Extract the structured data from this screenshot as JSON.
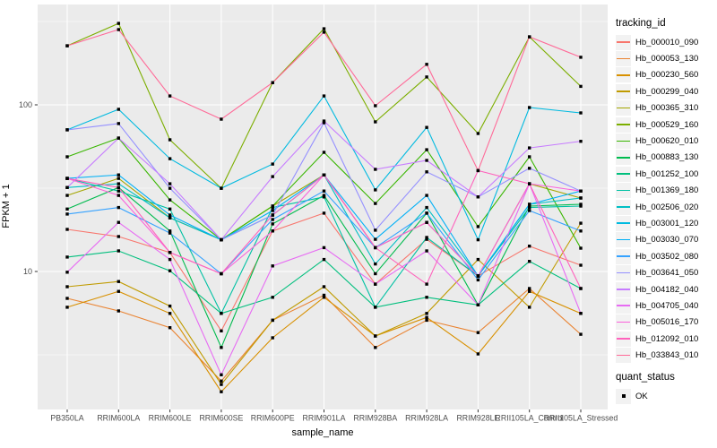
{
  "chart_data": {
    "type": "line",
    "title": "",
    "xlabel": "sample_name",
    "ylabel": "FPKM + 1",
    "y_scale": "log10",
    "ylim": [
      1.5,
      375
    ],
    "grid": "on",
    "panel_background": "#EBEBEB",
    "gridline_color": "#FFFFFF",
    "tick_label_color": "#4D4D4D",
    "point_marker": "black-square",
    "y_ticks": [
      {
        "label": "100",
        "value": 100
      },
      {
        "label": "10",
        "value": 10
      }
    ],
    "y_minor_gridlines": [
      316.2,
      31.62,
      3.162
    ],
    "x_categories": [
      "PB350LA",
      "RRIM600LA",
      "RRIM600LE",
      "RRIM600SE",
      "RRIM600PE",
      "RRIM901LA",
      "RRIM928BA",
      "RRIM928LA",
      "RRIM928LE",
      "RRII105LA_Control",
      "RRII105LA_Stressed"
    ],
    "legend": {
      "title": "tracking_id",
      "position": "right"
    },
    "quant_status_legend": {
      "title": "quant_status",
      "items": [
        {
          "label": "OK",
          "marker": "black-square"
        }
      ]
    },
    "series": [
      {
        "name": "Hb_000010_090",
        "color": "#F8766D",
        "values": [
          17.9,
          16.2,
          13.0,
          4.4,
          17.5,
          22.4,
          8.4,
          15.6,
          9.4,
          14.2,
          10.9
        ]
      },
      {
        "name": "Hb_000053_130",
        "color": "#EA8331",
        "values": [
          6.9,
          5.8,
          4.6,
          2.2,
          5.1,
          7.2,
          3.5,
          5.1,
          4.3,
          7.9,
          4.2
        ]
      },
      {
        "name": "Hb_000230_560",
        "color": "#D89000",
        "values": [
          6.1,
          7.6,
          5.6,
          1.9,
          4.0,
          7.0,
          4.1,
          5.3,
          3.2,
          7.6,
          5.6
        ]
      },
      {
        "name": "Hb_000299_040",
        "color": "#C09B00",
        "values": [
          8.1,
          8.7,
          6.2,
          2.1,
          5.1,
          8.1,
          4.1,
          5.6,
          11.8,
          6.1,
          19.5
        ]
      },
      {
        "name": "Hb_000365_310",
        "color": "#A3A500",
        "values": [
          28.6,
          36.2,
          21.0,
          15.5,
          24.7,
          38.0,
          13.9,
          19.7,
          9.4,
          33.6,
          27.6
        ]
      },
      {
        "name": "Hb_000529_160",
        "color": "#7CAE00",
        "values": [
          226,
          308,
          61.7,
          31.6,
          136,
          286,
          79.0,
          147,
          67.3,
          256,
          129
        ]
      },
      {
        "name": "Hb_000620_010",
        "color": "#39B600",
        "values": [
          48.8,
          63.2,
          26.9,
          15.5,
          24.7,
          51.9,
          25.6,
          53.8,
          18.6,
          48.8,
          13.8
        ]
      },
      {
        "name": "Hb_000883_130",
        "color": "#00BB4E",
        "values": [
          23.7,
          31.9,
          17.5,
          3.5,
          19.3,
          28.6,
          9.7,
          22.4,
          6.3,
          24.7,
          25.3
        ]
      },
      {
        "name": "Hb_001252_100",
        "color": "#00BF7D",
        "values": [
          12.2,
          13.3,
          10.1,
          5.6,
          7.0,
          11.8,
          6.1,
          7.0,
          6.3,
          11.5,
          7.9
        ]
      },
      {
        "name": "Hb_001369_180",
        "color": "#00C1A3",
        "values": [
          36.2,
          30.4,
          23.7,
          5.6,
          24.2,
          28.0,
          6.1,
          16.0,
          9.4,
          24.2,
          24.7
        ]
      },
      {
        "name": "Hb_002506_020",
        "color": "#00BFC4",
        "values": [
          31.9,
          33.6,
          21.0,
          15.5,
          21.8,
          38.0,
          11.1,
          24.2,
          9.4,
          25.3,
          27.6
        ]
      },
      {
        "name": "Hb_003001_120",
        "color": "#00BAE0",
        "values": [
          70.8,
          94.0,
          47.5,
          31.6,
          44.1,
          113,
          30.9,
          73.2,
          15.5,
          96.4,
          89.5
        ]
      },
      {
        "name": "Hb_003030_070",
        "color": "#00B0F6",
        "values": [
          36.2,
          38.0,
          21.8,
          15.5,
          23.2,
          38.0,
          15.6,
          28.6,
          9.4,
          25.3,
          30.4
        ]
      },
      {
        "name": "Hb_003502_080",
        "color": "#35A2FF",
        "values": [
          22.1,
          24.2,
          17.0,
          9.7,
          20.5,
          30.4,
          13.9,
          22.4,
          8.9,
          23.2,
          17.5
        ]
      },
      {
        "name": "Hb_003641_050",
        "color": "#9590FF",
        "values": [
          70.8,
          77.2,
          31.6,
          15.5,
          21.8,
          78.1,
          17.7,
          39.6,
          28.0,
          41.6,
          30.4
        ]
      },
      {
        "name": "Hb_004182_040",
        "color": "#C77CFF",
        "values": [
          31.9,
          63.2,
          33.6,
          15.5,
          37.1,
          79.9,
          41.0,
          46.4,
          28.0,
          55.1,
          60.4
        ]
      },
      {
        "name": "Hb_004705_040",
        "color": "#E76BF3",
        "values": [
          9.9,
          19.7,
          11.8,
          2.4,
          10.8,
          13.9,
          8.4,
          13.3,
          6.3,
          33.6,
          5.6
        ]
      },
      {
        "name": "Hb_005016_170",
        "color": "#FA62DB",
        "values": [
          36.2,
          28.6,
          13.0,
          9.7,
          17.5,
          38.0,
          13.9,
          19.7,
          9.4,
          33.6,
          30.4
        ]
      },
      {
        "name": "Hb_012092_010",
        "color": "#FF62BC",
        "values": [
          36.2,
          31.9,
          13.0,
          9.7,
          21.8,
          38.0,
          13.9,
          8.4,
          40.3,
          33.6,
          7.9
        ]
      },
      {
        "name": "Hb_033843_010",
        "color": "#FF6A98",
        "values": [
          226,
          283,
          113,
          82.0,
          136,
          273,
          98.8,
          175,
          40.3,
          256,
          193
        ]
      }
    ]
  }
}
